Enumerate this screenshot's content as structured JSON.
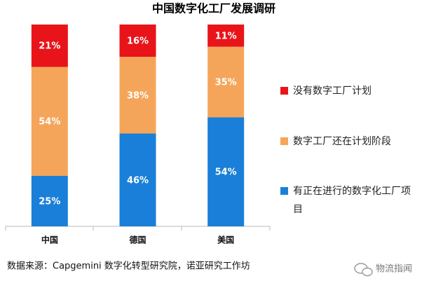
{
  "chart_data": {
    "type": "bar",
    "stacked": true,
    "title": "中国数字化工厂发展调研",
    "categories": [
      "中国",
      "德国",
      "美国"
    ],
    "series": [
      {
        "name": "有正在进行的数字化工厂项目",
        "color": "#1a7fd8",
        "values": [
          25,
          46,
          54
        ],
        "value_labels": [
          "25%",
          "46%",
          "54%"
        ]
      },
      {
        "name": "数字工厂还在计划阶段",
        "color": "#f5a55a",
        "values": [
          54,
          38,
          35
        ],
        "value_labels": [
          "54%",
          "38%",
          "35%"
        ]
      },
      {
        "name": "没有数字工厂计划",
        "color": "#e8141a",
        "values": [
          21,
          16,
          11
        ],
        "value_labels": [
          "21%",
          "16%",
          "11%"
        ]
      }
    ],
    "ylim": [
      0,
      100
    ],
    "source": "数据来源：Capgemini 数字化转型研究院，诺亚研究工作坊",
    "watermark": "物流指闻"
  }
}
